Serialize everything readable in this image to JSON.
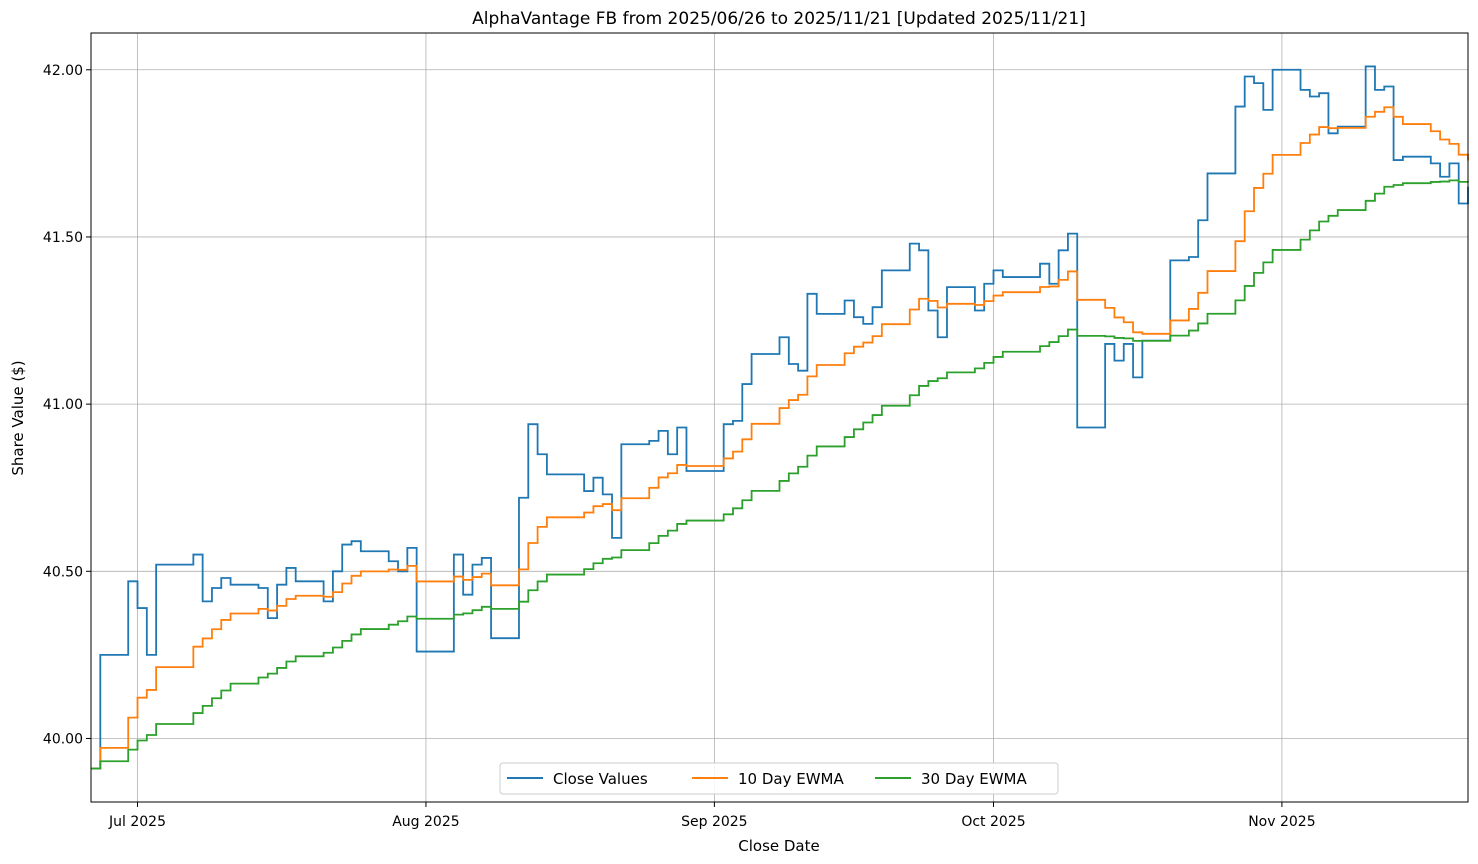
{
  "chart_data": {
    "type": "line",
    "style": "steps-post",
    "title": "AlphaVantage FB from 2025/06/26 to 2025/11/21 [Updated 2025/11/21]",
    "xlabel": "Close Date",
    "ylabel": "Share Value ($)",
    "xlim": [
      "2025-06-26",
      "2025-11-21"
    ],
    "ylim": [
      39.81,
      42.11
    ],
    "yticks": [
      40.0,
      40.5,
      41.0,
      41.5,
      42.0
    ],
    "ytick_labels": [
      "40.00",
      "40.50",
      "41.00",
      "41.50",
      "42.00"
    ],
    "xticks": [
      "2025-07-01",
      "2025-08-01",
      "2025-09-01",
      "2025-10-01",
      "2025-11-01"
    ],
    "xtick_labels": [
      "Jul 2025",
      "Aug 2025",
      "Sep 2025",
      "Oct 2025",
      "Nov 2025"
    ],
    "grid": true,
    "legend_position": "bottom-center",
    "series": [
      {
        "name": "Close Values",
        "color": "#1f77b4"
      },
      {
        "name": "10 Day EWMA",
        "color": "#ff7f0e",
        "ewma_span": 10,
        "source": "Close Values"
      },
      {
        "name": "30 Day EWMA",
        "color": "#2ca02c",
        "ewma_span": 30,
        "source": "Close Values"
      }
    ],
    "x": [
      "06-26",
      "06-27",
      "06-30",
      "07-01",
      "07-02",
      "07-03",
      "07-07",
      "07-08",
      "07-09",
      "07-10",
      "07-11",
      "07-14",
      "07-15",
      "07-16",
      "07-17",
      "07-18",
      "07-21",
      "07-22",
      "07-23",
      "07-24",
      "07-25",
      "07-28",
      "07-29",
      "07-30",
      "07-31",
      "08-04",
      "08-05",
      "08-06",
      "08-07",
      "08-08",
      "08-11",
      "08-12",
      "08-13",
      "08-14",
      "08-18",
      "08-19",
      "08-20",
      "08-21",
      "08-22",
      "08-25",
      "08-26",
      "08-27",
      "08-28",
      "08-29",
      "09-02",
      "09-03",
      "09-04",
      "09-05",
      "09-08",
      "09-09",
      "09-10",
      "09-11",
      "09-12",
      "09-15",
      "09-16",
      "09-17",
      "09-18",
      "09-19",
      "09-22",
      "09-23",
      "09-24",
      "09-25",
      "09-26",
      "09-29",
      "09-30",
      "10-01",
      "10-02",
      "10-06",
      "10-07",
      "10-08",
      "10-09",
      "10-10",
      "10-13",
      "10-14",
      "10-15",
      "10-16",
      "10-17",
      "10-20",
      "10-22",
      "10-23",
      "10-24",
      "10-27",
      "10-28",
      "10-29",
      "10-30",
      "10-31",
      "11-03",
      "11-04",
      "11-05",
      "11-06",
      "11-07",
      "11-10",
      "11-11",
      "11-12",
      "11-13",
      "11-14",
      "11-17",
      "11-18",
      "11-19",
      "11-20",
      "11-21"
    ],
    "close": [
      39.91,
      40.25,
      40.47,
      40.39,
      40.25,
      40.52,
      40.55,
      40.41,
      40.45,
      40.48,
      40.46,
      40.45,
      40.36,
      40.46,
      40.51,
      40.47,
      40.41,
      40.5,
      40.58,
      40.59,
      40.56,
      40.53,
      40.5,
      40.57,
      40.26,
      40.55,
      40.43,
      40.52,
      40.54,
      40.3,
      40.72,
      40.94,
      40.85,
      40.79,
      40.74,
      40.78,
      40.73,
      40.6,
      40.88,
      40.89,
      40.92,
      40.85,
      40.93,
      40.8,
      40.94,
      40.95,
      41.06,
      41.15,
      41.2,
      41.12,
      41.1,
      41.33,
      41.27,
      41.31,
      41.26,
      41.24,
      41.29,
      41.4,
      41.48,
      41.46,
      41.28,
      41.2,
      41.35,
      41.28,
      41.36,
      41.4,
      41.38,
      41.42,
      41.36,
      41.46,
      41.51,
      40.93,
      41.18,
      41.13,
      41.18,
      41.08,
      41.19,
      41.43,
      41.44,
      41.55,
      41.69,
      41.89,
      41.98,
      41.96,
      41.88,
      42.0,
      41.94,
      41.92,
      41.93,
      41.81,
      41.83,
      42.01,
      41.94,
      41.95,
      41.73,
      41.74,
      41.72,
      41.68,
      41.72,
      41.6,
      41.65
    ]
  }
}
